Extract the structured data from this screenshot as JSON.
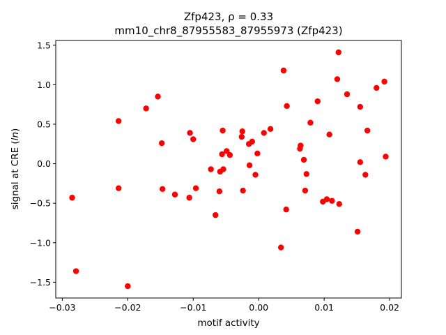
{
  "chart_data": {
    "type": "scatter",
    "title_line1": "Zfp423, ρ = 0.33",
    "title_line2": "mm10_chr8_87955583_87955973 (Zfp423)",
    "xlabel": "motif activity",
    "ylabel": "signal at CRE (ln)",
    "xlim": [
      -0.031,
      0.0218
    ],
    "ylim": [
      -1.7,
      1.56
    ],
    "xticks": [
      -0.03,
      -0.02,
      -0.01,
      0.0,
      0.01,
      0.02
    ],
    "xtick_labels": [
      "−0.03",
      "−0.02",
      "−0.01",
      "0.00",
      "0.01",
      "0.02"
    ],
    "yticks": [
      -1.5,
      -1.0,
      -0.5,
      0.0,
      0.5,
      1.0,
      1.5
    ],
    "ytick_labels": [
      "−1.5",
      "−1.0",
      "−0.5",
      "0.0",
      "0.5",
      "1.0",
      "1.5"
    ],
    "grid": false,
    "marker_color": "#ff0000",
    "points": [
      {
        "x": -0.0285,
        "y": -0.43
      },
      {
        "x": -0.0279,
        "y": -1.36
      },
      {
        "x": -0.0214,
        "y": 0.54
      },
      {
        "x": -0.0214,
        "y": -0.31
      },
      {
        "x": -0.02,
        "y": -1.55
      },
      {
        "x": -0.0172,
        "y": 0.7
      },
      {
        "x": -0.0154,
        "y": 0.85
      },
      {
        "x": -0.0148,
        "y": 0.26
      },
      {
        "x": -0.0147,
        "y": -0.32
      },
      {
        "x": -0.0128,
        "y": -0.39
      },
      {
        "x": -0.0106,
        "y": -0.43
      },
      {
        "x": -0.0105,
        "y": 0.39
      },
      {
        "x": -0.01,
        "y": 0.31
      },
      {
        "x": -0.0096,
        "y": -0.31
      },
      {
        "x": -0.0073,
        "y": -0.07
      },
      {
        "x": -0.0066,
        "y": -0.65
      },
      {
        "x": -0.006,
        "y": -0.35
      },
      {
        "x": -0.0059,
        "y": -0.1
      },
      {
        "x": -0.0056,
        "y": 0.12
      },
      {
        "x": -0.0055,
        "y": 0.42
      },
      {
        "x": -0.0054,
        "y": -0.07
      },
      {
        "x": -0.0049,
        "y": 0.16
      },
      {
        "x": -0.0044,
        "y": 0.11
      },
      {
        "x": -0.0026,
        "y": 0.34
      },
      {
        "x": -0.0025,
        "y": 0.41
      },
      {
        "x": -0.0024,
        "y": -0.34
      },
      {
        "x": -0.0015,
        "y": 0.25
      },
      {
        "x": -0.0014,
        "y": -0.02
      },
      {
        "x": -0.001,
        "y": 0.28
      },
      {
        "x": -0.0005,
        "y": -0.14
      },
      {
        "x": -0.0002,
        "y": 0.13
      },
      {
        "x": 0.0008,
        "y": 0.39
      },
      {
        "x": 0.0018,
        "y": 0.44
      },
      {
        "x": 0.0034,
        "y": -1.06
      },
      {
        "x": 0.0038,
        "y": 1.18
      },
      {
        "x": 0.0042,
        "y": -0.58
      },
      {
        "x": 0.0043,
        "y": 0.73
      },
      {
        "x": 0.0063,
        "y": 0.19
      },
      {
        "x": 0.0064,
        "y": 0.23
      },
      {
        "x": 0.0069,
        "y": 0.05
      },
      {
        "x": 0.0071,
        "y": -0.34
      },
      {
        "x": 0.0073,
        "y": -0.13
      },
      {
        "x": 0.0079,
        "y": 0.52
      },
      {
        "x": 0.009,
        "y": 0.79
      },
      {
        "x": 0.0098,
        "y": -0.48
      },
      {
        "x": 0.0104,
        "y": -0.45
      },
      {
        "x": 0.0108,
        "y": 0.37
      },
      {
        "x": 0.0112,
        "y": -0.47
      },
      {
        "x": 0.012,
        "y": 1.07
      },
      {
        "x": 0.0122,
        "y": 1.41
      },
      {
        "x": 0.0123,
        "y": -0.51
      },
      {
        "x": 0.0135,
        "y": 0.88
      },
      {
        "x": 0.0151,
        "y": -0.86
      },
      {
        "x": 0.0155,
        "y": 0.72
      },
      {
        "x": 0.0155,
        "y": 0.02
      },
      {
        "x": 0.0163,
        "y": -0.14
      },
      {
        "x": 0.0166,
        "y": 0.42
      },
      {
        "x": 0.018,
        "y": 0.96
      },
      {
        "x": 0.0192,
        "y": 1.04
      },
      {
        "x": 0.0194,
        "y": 0.09
      }
    ]
  }
}
